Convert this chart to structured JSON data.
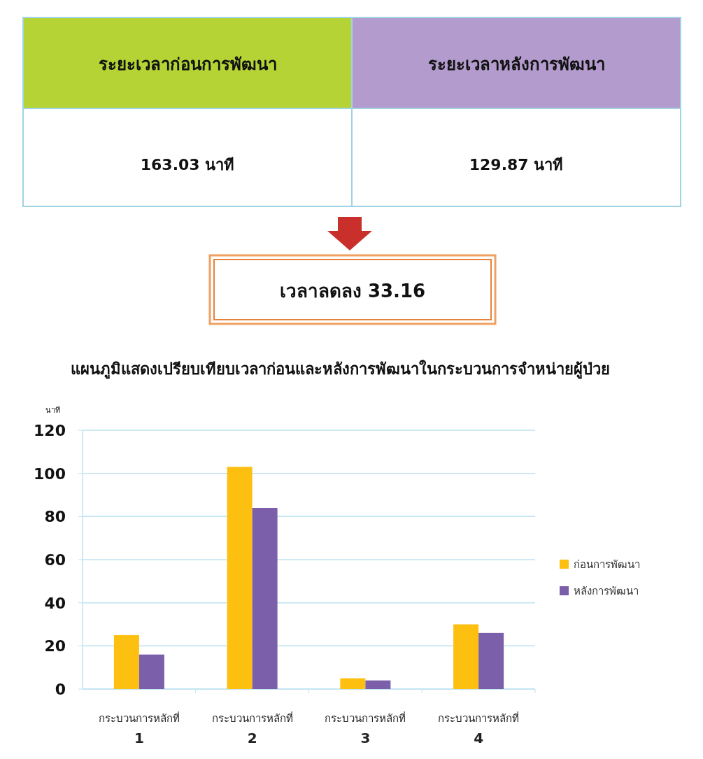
{
  "chart_data": {
    "type": "bar",
    "title": "แผนภูมิแสดงเปรียบเทียบเวลาก่อนและหลังการพัฒนาในกระบวนการจำหน่ายผู้ป่วย",
    "ylabel": "นาที",
    "annotations": [
      "ระยะเวลาก่อนการพัฒนา",
      "ระยะเวลาหลังการพัฒนา",
      "163.03 นาที",
      "129.87 นาที",
      "เวลาลดลง 33.16"
    ],
    "categories": [
      "กระบวนการหลักที่ 1",
      "กระบวนการหลักที่ 2",
      "กระบวนการหลักที่ 3",
      "กระบวนการหลักที่ 4"
    ],
    "series": [
      {
        "name": "ก่อนการพัฒนา",
        "color": "#fdc010",
        "values": [
          25,
          103,
          5,
          30
        ]
      },
      {
        "name": "หลังการพัฒนา",
        "color": "#7b5fab",
        "values": [
          16,
          84,
          4,
          26
        ]
      }
    ],
    "ylim": [
      0,
      120
    ],
    "yticks": [
      0,
      20,
      40,
      60,
      80,
      100,
      120
    ],
    "grid": "y",
    "legend": "right"
  }
}
